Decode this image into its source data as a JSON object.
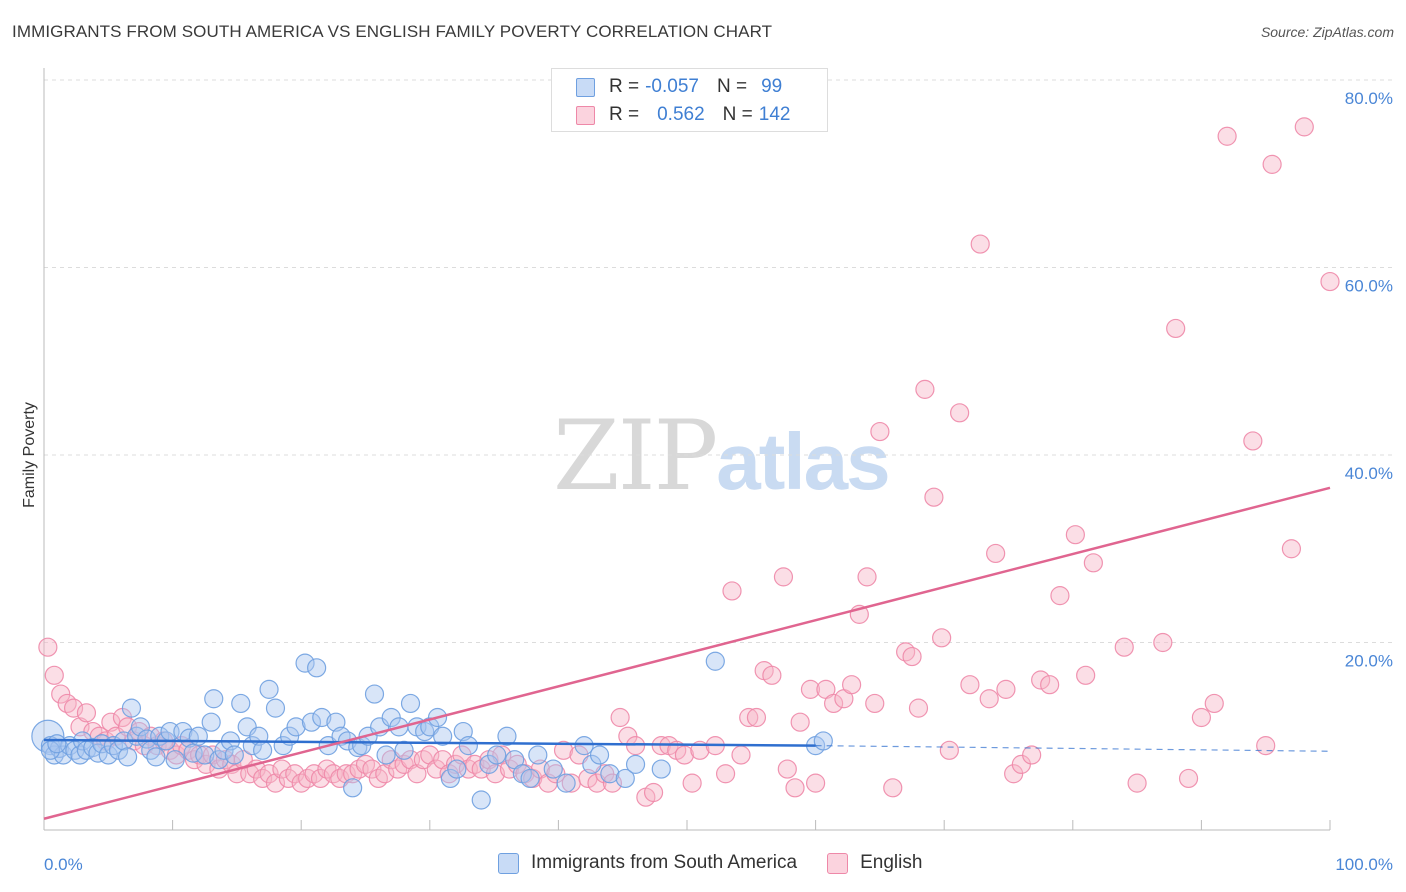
{
  "title": "IMMIGRANTS FROM SOUTH AMERICA VS ENGLISH FAMILY POVERTY CORRELATION CHART",
  "source": "Source: ZipAtlas.com",
  "watermark": {
    "zip": "ZIP",
    "atlas": "atlas"
  },
  "legend": {
    "rows": [
      {
        "r_label": "R =",
        "r_value": "-0.057",
        "n_label": "N =",
        "n_value": " 99",
        "color": "#a8c6f0"
      },
      {
        "r_label": "R =",
        "r_value": " 0.562",
        "n_label": "N =",
        "n_value": "142",
        "color": "#f6b6c8"
      }
    ]
  },
  "bottom_legend": [
    {
      "label": "Immigrants from South America",
      "color": "#a8c6f0"
    },
    {
      "label": "English",
      "color": "#f6b6c8"
    }
  ],
  "chart_data": {
    "type": "scatter",
    "title": "IMMIGRANTS FROM SOUTH AMERICA VS ENGLISH FAMILY POVERTY CORRELATION CHART",
    "xlabel": "",
    "ylabel": "Family Poverty",
    "xlim": [
      0,
      100
    ],
    "ylim": [
      0,
      80
    ],
    "x_tick_labels": [
      "0.0%",
      "100.0%"
    ],
    "y_tick_labels": [
      "20.0%",
      "40.0%",
      "60.0%",
      "80.0%"
    ],
    "y_ticks": [
      20,
      40,
      60,
      80
    ],
    "grid": true,
    "legend_position": "top-center",
    "series": [
      {
        "name": "Immigrants from South America",
        "color": "#6fa0e0",
        "fill": "#a8c6f0",
        "trend": {
          "x": [
            0,
            60
          ],
          "y": [
            9.6,
            9.0
          ],
          "dashed_to": [
            100,
            8.4
          ],
          "color": "#2f6fcf"
        },
        "points": [
          [
            0.3,
            10.0
          ],
          [
            0.5,
            9.0
          ],
          [
            0.8,
            8.0
          ],
          [
            1.2,
            8.7
          ],
          [
            1.5,
            8.0
          ],
          [
            2.0,
            9.0
          ],
          [
            2.4,
            8.5
          ],
          [
            2.8,
            8.0
          ],
          [
            3.0,
            9.5
          ],
          [
            3.3,
            8.5
          ],
          [
            3.8,
            8.8
          ],
          [
            4.2,
            8.2
          ],
          [
            4.5,
            9.2
          ],
          [
            5.0,
            8.0
          ],
          [
            5.4,
            9.0
          ],
          [
            5.8,
            8.5
          ],
          [
            6.2,
            9.5
          ],
          [
            6.5,
            7.8
          ],
          [
            6.8,
            13.0
          ],
          [
            7.2,
            10.0
          ],
          [
            7.5,
            11.0
          ],
          [
            8.0,
            9.7
          ],
          [
            8.3,
            8.5
          ],
          [
            8.7,
            7.8
          ],
          [
            9.0,
            10.0
          ],
          [
            9.5,
            9.5
          ],
          [
            9.8,
            10.5
          ],
          [
            10.2,
            7.5
          ],
          [
            10.8,
            10.5
          ],
          [
            11.3,
            9.8
          ],
          [
            11.6,
            8.2
          ],
          [
            12.0,
            10.0
          ],
          [
            12.5,
            8.0
          ],
          [
            13.0,
            11.5
          ],
          [
            13.2,
            14.0
          ],
          [
            13.6,
            7.5
          ],
          [
            14.0,
            8.5
          ],
          [
            14.5,
            9.5
          ],
          [
            14.8,
            8.0
          ],
          [
            15.3,
            13.5
          ],
          [
            15.8,
            11.0
          ],
          [
            16.2,
            9.0
          ],
          [
            16.7,
            10.0
          ],
          [
            17.0,
            8.5
          ],
          [
            17.5,
            15.0
          ],
          [
            18.0,
            13.0
          ],
          [
            18.6,
            9.0
          ],
          [
            19.1,
            10.0
          ],
          [
            19.6,
            11.0
          ],
          [
            20.3,
            17.8
          ],
          [
            20.8,
            11.5
          ],
          [
            21.2,
            17.3
          ],
          [
            21.6,
            12.0
          ],
          [
            22.1,
            9.0
          ],
          [
            22.7,
            11.5
          ],
          [
            23.1,
            10.0
          ],
          [
            23.6,
            9.5
          ],
          [
            24.0,
            4.5
          ],
          [
            24.4,
            8.8
          ],
          [
            24.7,
            9.0
          ],
          [
            25.2,
            10.0
          ],
          [
            25.7,
            14.5
          ],
          [
            26.1,
            11.0
          ],
          [
            26.6,
            8.0
          ],
          [
            27.0,
            12.0
          ],
          [
            27.6,
            11.0
          ],
          [
            28.0,
            8.5
          ],
          [
            28.5,
            13.5
          ],
          [
            29.0,
            11.0
          ],
          [
            29.6,
            10.5
          ],
          [
            30.0,
            11.0
          ],
          [
            30.6,
            12.0
          ],
          [
            31.0,
            10.0
          ],
          [
            31.6,
            5.5
          ],
          [
            32.1,
            6.5
          ],
          [
            32.6,
            10.5
          ],
          [
            33.0,
            9.0
          ],
          [
            34.0,
            3.2
          ],
          [
            34.6,
            7.0
          ],
          [
            35.2,
            8.0
          ],
          [
            36.0,
            10.0
          ],
          [
            36.6,
            7.5
          ],
          [
            37.2,
            6.0
          ],
          [
            37.8,
            5.5
          ],
          [
            38.4,
            8.0
          ],
          [
            39.6,
            6.5
          ],
          [
            40.6,
            5.0
          ],
          [
            42.0,
            9.0
          ],
          [
            42.6,
            7.0
          ],
          [
            43.2,
            8.0
          ],
          [
            44.0,
            6.0
          ],
          [
            45.2,
            5.5
          ],
          [
            46.0,
            7.0
          ],
          [
            48.0,
            6.5
          ],
          [
            52.2,
            18.0
          ],
          [
            60.0,
            9.0
          ],
          [
            60.6,
            9.5
          ],
          [
            0.5,
            8.5
          ],
          [
            1.0,
            9.2
          ]
        ]
      },
      {
        "name": "English",
        "color": "#ee88a8",
        "fill": "#f6b6c8",
        "trend": {
          "x": [
            0,
            100
          ],
          "y": [
            1.2,
            36.5
          ],
          "color": "#e06590"
        },
        "points": [
          [
            0.3,
            19.5
          ],
          [
            0.8,
            16.5
          ],
          [
            1.3,
            14.5
          ],
          [
            1.8,
            13.5
          ],
          [
            2.3,
            13.0
          ],
          [
            2.8,
            11.0
          ],
          [
            3.3,
            12.5
          ],
          [
            3.8,
            10.5
          ],
          [
            4.3,
            10.0
          ],
          [
            4.8,
            9.5
          ],
          [
            5.2,
            11.5
          ],
          [
            5.6,
            10.0
          ],
          [
            6.1,
            12.0
          ],
          [
            6.5,
            11.0
          ],
          [
            7.0,
            9.5
          ],
          [
            7.4,
            10.5
          ],
          [
            7.8,
            9.0
          ],
          [
            8.3,
            10.0
          ],
          [
            8.8,
            9.0
          ],
          [
            9.3,
            9.5
          ],
          [
            9.8,
            8.5
          ],
          [
            10.3,
            8.0
          ],
          [
            10.7,
            9.0
          ],
          [
            11.2,
            8.5
          ],
          [
            11.7,
            7.5
          ],
          [
            12.1,
            8.0
          ],
          [
            12.6,
            7.0
          ],
          [
            13.1,
            8.0
          ],
          [
            13.6,
            6.5
          ],
          [
            14.1,
            7.5
          ],
          [
            14.6,
            7.0
          ],
          [
            15.0,
            6.0
          ],
          [
            15.5,
            7.5
          ],
          [
            16.0,
            6.0
          ],
          [
            16.5,
            6.5
          ],
          [
            17.0,
            5.5
          ],
          [
            17.5,
            6.0
          ],
          [
            18.0,
            5.0
          ],
          [
            18.5,
            6.5
          ],
          [
            19.0,
            5.5
          ],
          [
            19.5,
            6.0
          ],
          [
            20.0,
            5.0
          ],
          [
            20.5,
            5.5
          ],
          [
            21.0,
            6.0
          ],
          [
            21.5,
            5.5
          ],
          [
            22.0,
            6.5
          ],
          [
            22.5,
            6.0
          ],
          [
            23.0,
            5.5
          ],
          [
            23.5,
            6.0
          ],
          [
            24.0,
            6.0
          ],
          [
            24.5,
            6.5
          ],
          [
            25.0,
            7.0
          ],
          [
            25.5,
            6.5
          ],
          [
            26.0,
            5.5
          ],
          [
            26.5,
            6.0
          ],
          [
            27.0,
            7.5
          ],
          [
            27.5,
            6.5
          ],
          [
            28.0,
            7.0
          ],
          [
            28.5,
            7.5
          ],
          [
            29.0,
            6.0
          ],
          [
            29.5,
            7.5
          ],
          [
            30.0,
            8.0
          ],
          [
            30.5,
            6.5
          ],
          [
            31.0,
            7.5
          ],
          [
            31.5,
            6.0
          ],
          [
            32.0,
            7.0
          ],
          [
            32.5,
            8.0
          ],
          [
            33.0,
            6.5
          ],
          [
            33.5,
            7.0
          ],
          [
            34.0,
            6.5
          ],
          [
            34.6,
            7.5
          ],
          [
            35.1,
            6.0
          ],
          [
            35.6,
            8.0
          ],
          [
            36.2,
            6.5
          ],
          [
            36.8,
            7.0
          ],
          [
            37.4,
            6.0
          ],
          [
            38.0,
            5.5
          ],
          [
            38.6,
            6.5
          ],
          [
            39.2,
            5.0
          ],
          [
            39.8,
            6.0
          ],
          [
            40.4,
            8.5
          ],
          [
            41.0,
            5.0
          ],
          [
            41.6,
            8.0
          ],
          [
            42.3,
            5.5
          ],
          [
            43.0,
            5.0
          ],
          [
            43.6,
            6.0
          ],
          [
            44.2,
            5.0
          ],
          [
            44.8,
            12.0
          ],
          [
            45.4,
            10.0
          ],
          [
            46.0,
            9.0
          ],
          [
            46.8,
            3.5
          ],
          [
            47.4,
            4.0
          ],
          [
            48.0,
            9.0
          ],
          [
            48.6,
            9.0
          ],
          [
            49.2,
            8.5
          ],
          [
            49.8,
            8.0
          ],
          [
            50.4,
            5.0
          ],
          [
            51.0,
            8.5
          ],
          [
            52.2,
            9.0
          ],
          [
            53.0,
            6.0
          ],
          [
            53.5,
            25.5
          ],
          [
            54.2,
            8.0
          ],
          [
            54.8,
            12.0
          ],
          [
            55.4,
            12.0
          ],
          [
            56.0,
            17.0
          ],
          [
            56.6,
            16.5
          ],
          [
            57.5,
            27.0
          ],
          [
            57.8,
            6.5
          ],
          [
            58.4,
            4.5
          ],
          [
            58.8,
            11.5
          ],
          [
            59.6,
            15.0
          ],
          [
            60.0,
            5.0
          ],
          [
            60.8,
            15.0
          ],
          [
            61.4,
            13.5
          ],
          [
            62.2,
            14.0
          ],
          [
            62.8,
            15.5
          ],
          [
            63.4,
            23.0
          ],
          [
            64.0,
            27.0
          ],
          [
            64.6,
            13.5
          ],
          [
            65.0,
            42.5
          ],
          [
            66.0,
            4.5
          ],
          [
            67.0,
            19.0
          ],
          [
            67.5,
            18.5
          ],
          [
            68.0,
            13.0
          ],
          [
            68.5,
            47.0
          ],
          [
            69.2,
            35.5
          ],
          [
            69.8,
            20.5
          ],
          [
            70.4,
            8.5
          ],
          [
            71.2,
            44.5
          ],
          [
            72.0,
            15.5
          ],
          [
            72.8,
            62.5
          ],
          [
            73.5,
            14.0
          ],
          [
            74.0,
            29.5
          ],
          [
            74.8,
            15.0
          ],
          [
            75.4,
            6.0
          ],
          [
            76.0,
            7.0
          ],
          [
            76.8,
            8.0
          ],
          [
            77.5,
            16.0
          ],
          [
            78.2,
            15.5
          ],
          [
            79.0,
            25.0
          ],
          [
            80.2,
            31.5
          ],
          [
            81.0,
            16.5
          ],
          [
            81.6,
            28.5
          ],
          [
            84.0,
            19.5
          ],
          [
            85.0,
            5.0
          ],
          [
            87.0,
            20.0
          ],
          [
            88.0,
            53.5
          ],
          [
            89.0,
            5.5
          ],
          [
            90.0,
            12.0
          ],
          [
            91.0,
            13.5
          ],
          [
            92.0,
            74.0
          ],
          [
            94.0,
            41.5
          ],
          [
            95.0,
            9.0
          ],
          [
            95.5,
            71.0
          ],
          [
            97.0,
            30.0
          ],
          [
            98.0,
            75.0
          ],
          [
            100.0,
            58.5
          ]
        ]
      }
    ]
  }
}
